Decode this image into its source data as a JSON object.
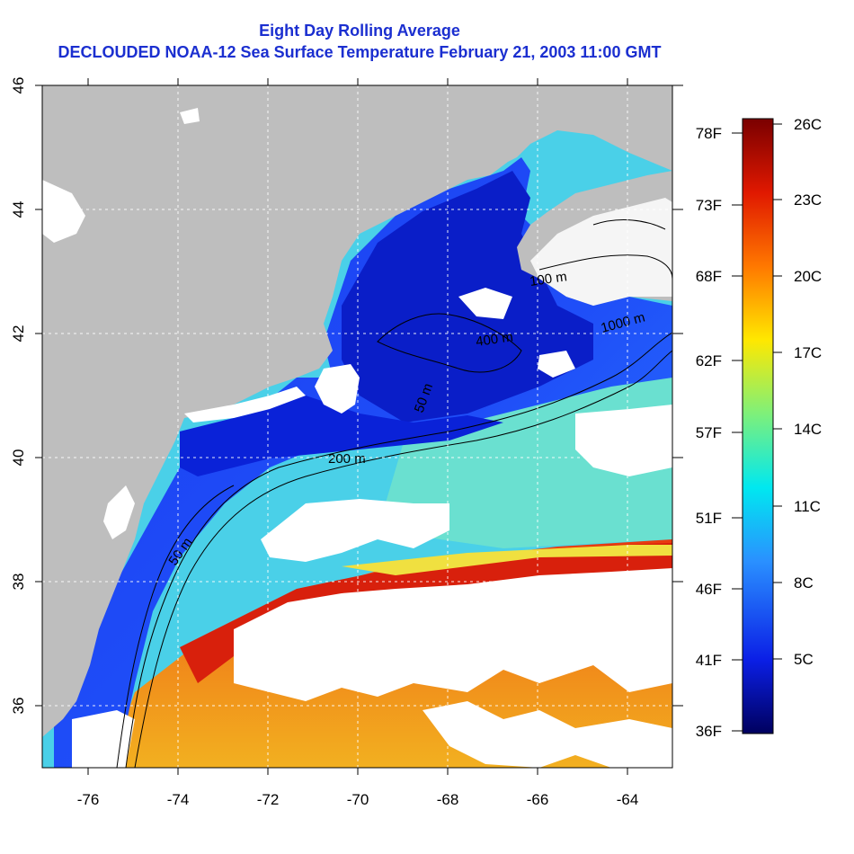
{
  "title": "Eight Day Rolling Average",
  "subtitle": "DECLOUDED NOAA-12 Sea Surface Temperature February 21, 2003 11:00 GMT",
  "map": {
    "lon_ticks": [
      "-76",
      "-74",
      "-72",
      "-70",
      "-68",
      "-66",
      "-64"
    ],
    "lat_ticks": [
      "36",
      "38",
      "40",
      "42",
      "44",
      "46"
    ],
    "lon_range": [
      -77,
      -63
    ],
    "lat_range": [
      35,
      46
    ],
    "grid": "dotted",
    "land_color": "#bebebe",
    "cloud_color": "#ffffff",
    "contour_labels": [
      "100 m",
      "1000 m",
      "400 m",
      "50 m",
      "200 m",
      "50 m"
    ]
  },
  "colorbar": {
    "celsius": [
      "26C",
      "23C",
      "20C",
      "17C",
      "14C",
      "11C",
      "8C",
      "5C"
    ],
    "fahrenheit": [
      "78F",
      "73F",
      "68F",
      "62F",
      "57F",
      "51F",
      "46F",
      "41F",
      "36F"
    ],
    "colors": [
      "#7a0000",
      "#e01800",
      "#ff7800",
      "#ffe800",
      "#7ef07a",
      "#00e8f0",
      "#2a90ff",
      "#0b1fe6",
      "#00005e"
    ]
  }
}
